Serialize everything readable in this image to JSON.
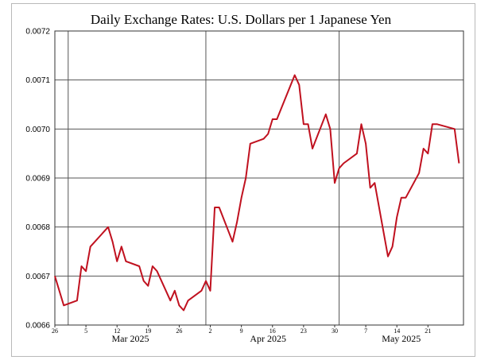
{
  "chart_data": {
    "type": "line",
    "title": "Daily Exchange Rates: U.S. Dollars per 1 Japanese Yen",
    "xlabel": "",
    "ylabel": "",
    "ylim": [
      0.0066,
      0.0072
    ],
    "yticks": [
      "0.0066",
      "0.0067",
      "0.0068",
      "0.0069",
      "0.0070",
      "0.0071",
      "0.0072"
    ],
    "grid": true,
    "legend": "none",
    "line_color": "#c0111f",
    "xlim": [
      "2025-02-26",
      "2025-05-29"
    ],
    "xticks": [
      {
        "date": "2025-02-26",
        "label": "26"
      },
      {
        "date": "2025-03-05",
        "label": "5"
      },
      {
        "date": "2025-03-12",
        "label": "12"
      },
      {
        "date": "2025-03-19",
        "label": "19"
      },
      {
        "date": "2025-03-26",
        "label": "26"
      },
      {
        "date": "2025-04-02",
        "label": "2"
      },
      {
        "date": "2025-04-09",
        "label": "9"
      },
      {
        "date": "2025-04-16",
        "label": "16"
      },
      {
        "date": "2025-04-23",
        "label": "23"
      },
      {
        "date": "2025-04-30",
        "label": "30"
      },
      {
        "date": "2025-05-07",
        "label": "7"
      },
      {
        "date": "2025-05-14",
        "label": "14"
      },
      {
        "date": "2025-05-21",
        "label": "21"
      }
    ],
    "month_labels": [
      {
        "date": "2025-03-15",
        "label": "Mar 2025"
      },
      {
        "date": "2025-04-15",
        "label": "Apr 2025"
      },
      {
        "date": "2025-05-15",
        "label": "May 2025"
      }
    ],
    "month_starts": [
      "2025-03-01",
      "2025-04-01",
      "2025-05-01"
    ],
    "x": [
      "2025-02-26",
      "2025-02-28",
      "2025-03-03",
      "2025-03-04",
      "2025-03-05",
      "2025-03-06",
      "2025-03-07",
      "2025-03-10",
      "2025-03-11",
      "2025-03-12",
      "2025-03-13",
      "2025-03-14",
      "2025-03-17",
      "2025-03-18",
      "2025-03-19",
      "2025-03-20",
      "2025-03-21",
      "2025-03-24",
      "2025-03-25",
      "2025-03-26",
      "2025-03-27",
      "2025-03-28",
      "2025-03-31",
      "2025-04-01",
      "2025-04-02",
      "2025-04-03",
      "2025-04-04",
      "2025-04-07",
      "2025-04-08",
      "2025-04-09",
      "2025-04-10",
      "2025-04-11",
      "2025-04-14",
      "2025-04-15",
      "2025-04-16",
      "2025-04-17",
      "2025-04-21",
      "2025-04-22",
      "2025-04-23",
      "2025-04-24",
      "2025-04-25",
      "2025-04-28",
      "2025-04-29",
      "2025-04-30",
      "2025-05-01",
      "2025-05-02",
      "2025-05-05",
      "2025-05-06",
      "2025-05-07",
      "2025-05-08",
      "2025-05-09",
      "2025-05-12",
      "2025-05-13",
      "2025-05-14",
      "2025-05-15",
      "2025-05-16",
      "2025-05-19",
      "2025-05-20",
      "2025-05-21",
      "2025-05-22",
      "2025-05-23",
      "2025-05-27",
      "2025-05-28"
    ],
    "series": [
      {
        "values": [
          0.0067,
          0.00664,
          0.00665,
          0.00672,
          0.00671,
          0.00676,
          0.00677,
          0.0068,
          0.00677,
          0.00673,
          0.00676,
          0.00673,
          0.00672,
          0.00669,
          0.00668,
          0.00672,
          0.00671,
          0.00665,
          0.00667,
          0.00664,
          0.00663,
          0.00665,
          0.00667,
          0.00669,
          0.00667,
          0.00684,
          0.00684,
          0.00677,
          0.00681,
          0.00686,
          0.0069,
          0.00697,
          0.00698,
          0.00699,
          0.00702,
          0.00702,
          0.00711,
          0.00709,
          0.00701,
          0.00701,
          0.00696,
          0.00703,
          0.007,
          0.00689,
          0.00692,
          0.00693,
          0.00695,
          0.00701,
          0.00697,
          0.00688,
          0.00689,
          0.00674,
          0.00676,
          0.00682,
          0.00686,
          0.00686,
          0.00691,
          0.00696,
          0.00695,
          0.00701,
          0.00701,
          0.007,
          0.00693
        ]
      }
    ]
  }
}
